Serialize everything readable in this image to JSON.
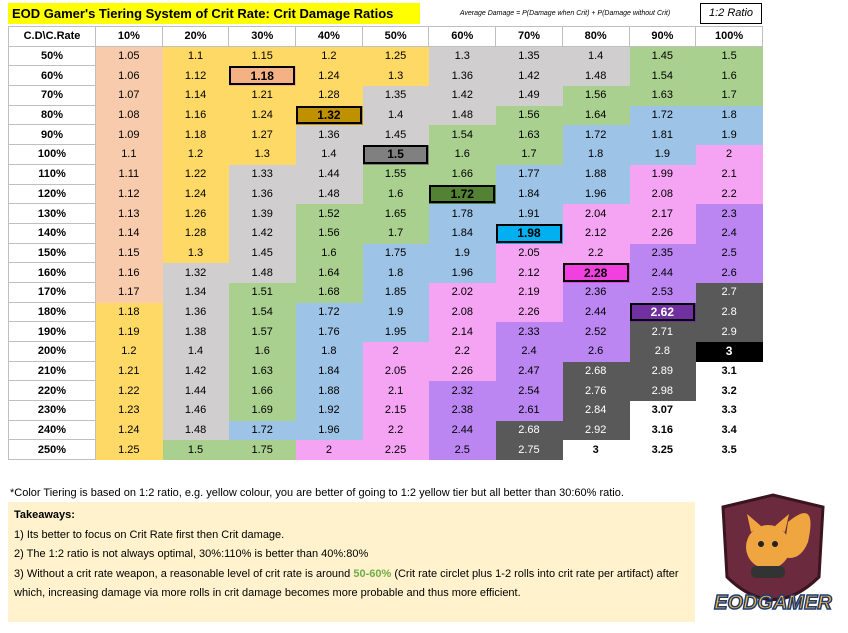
{
  "header": {
    "title": "EOD Gamer's Tiering System of Crit Rate: Crit Damage Ratios",
    "formula": "Average Damage = P(Damage when Crit) + P(Damage without Crit)",
    "ratio": "1:2 Ratio"
  },
  "tiers": [
    {
      "color": "#f8cbad",
      "text": "#000000",
      "bold": false,
      "border": false
    },
    {
      "color": "#ffd966",
      "text": "#000000",
      "bold": false,
      "border": false
    },
    {
      "color": "#d0cece",
      "text": "#000000",
      "bold": false,
      "border": false
    },
    {
      "color": "#a9d08e",
      "text": "#000000",
      "bold": false,
      "border": false
    },
    {
      "color": "#9dc3e6",
      "text": "#000000",
      "bold": false,
      "border": false
    },
    {
      "color": "#f5a3f3",
      "text": "#000000",
      "bold": false,
      "border": false
    },
    {
      "color": "#bb86f2",
      "text": "#000000",
      "bold": false,
      "border": false
    },
    {
      "color": "#595959",
      "text": "#ffffff",
      "bold": false,
      "border": false
    },
    {
      "color": "#ffffff",
      "text": "#000000",
      "bold": true,
      "border": false
    },
    {
      "color": "#f4b183",
      "text": "#000000",
      "bold": true,
      "border": true
    },
    {
      "color": "#bf9000",
      "text": "#000000",
      "bold": true,
      "border": true
    },
    {
      "color": "#808080",
      "text": "#000000",
      "bold": true,
      "border": true
    },
    {
      "color": "#548235",
      "text": "#000000",
      "bold": true,
      "border": true
    },
    {
      "color": "#00b0f0",
      "text": "#000000",
      "bold": true,
      "border": true
    },
    {
      "color": "#f23fe0",
      "text": "#000000",
      "bold": true,
      "border": true
    },
    {
      "color": "#7030a0",
      "text": "#ffffff",
      "bold": true,
      "border": true
    },
    {
      "color": "#000000",
      "text": "#ffffff",
      "bold": true,
      "border": true
    }
  ],
  "table": {
    "corner": "C.D\\C.Rate",
    "columns": [
      "10%",
      "20%",
      "30%",
      "40%",
      "50%",
      "60%",
      "70%",
      "80%",
      "90%",
      "100%"
    ],
    "rows": [
      {
        "label": "50%",
        "cells": [
          "1.05",
          "1.1",
          "1.15",
          "1.2",
          "1.25",
          "1.3",
          "1.35",
          "1.4",
          "1.45",
          "1.5"
        ],
        "tiers": [
          0,
          1,
          1,
          1,
          1,
          2,
          2,
          2,
          3,
          3
        ]
      },
      {
        "label": "60%",
        "cells": [
          "1.06",
          "1.12",
          "1.18",
          "1.24",
          "1.3",
          "1.36",
          "1.42",
          "1.48",
          "1.54",
          "1.6"
        ],
        "tiers": [
          0,
          1,
          9,
          1,
          1,
          2,
          2,
          2,
          3,
          3
        ]
      },
      {
        "label": "70%",
        "cells": [
          "1.07",
          "1.14",
          "1.21",
          "1.28",
          "1.35",
          "1.42",
          "1.49",
          "1.56",
          "1.63",
          "1.7"
        ],
        "tiers": [
          0,
          1,
          1,
          1,
          2,
          2,
          2,
          3,
          3,
          3
        ]
      },
      {
        "label": "80%",
        "cells": [
          "1.08",
          "1.16",
          "1.24",
          "1.32",
          "1.4",
          "1.48",
          "1.56",
          "1.64",
          "1.72",
          "1.8"
        ],
        "tiers": [
          0,
          1,
          1,
          10,
          2,
          2,
          3,
          3,
          4,
          4
        ]
      },
      {
        "label": "90%",
        "cells": [
          "1.09",
          "1.18",
          "1.27",
          "1.36",
          "1.45",
          "1.54",
          "1.63",
          "1.72",
          "1.81",
          "1.9"
        ],
        "tiers": [
          0,
          1,
          1,
          2,
          2,
          3,
          3,
          4,
          4,
          4
        ]
      },
      {
        "label": "100%",
        "cells": [
          "1.1",
          "1.2",
          "1.3",
          "1.4",
          "1.5",
          "1.6",
          "1.7",
          "1.8",
          "1.9",
          "2"
        ],
        "tiers": [
          0,
          1,
          1,
          2,
          11,
          3,
          3,
          4,
          4,
          5
        ]
      },
      {
        "label": "110%",
        "cells": [
          "1.11",
          "1.22",
          "1.33",
          "1.44",
          "1.55",
          "1.66",
          "1.77",
          "1.88",
          "1.99",
          "2.1"
        ],
        "tiers": [
          0,
          1,
          2,
          2,
          3,
          3,
          4,
          4,
          5,
          5
        ]
      },
      {
        "label": "120%",
        "cells": [
          "1.12",
          "1.24",
          "1.36",
          "1.48",
          "1.6",
          "1.72",
          "1.84",
          "1.96",
          "2.08",
          "2.2"
        ],
        "tiers": [
          0,
          1,
          2,
          2,
          3,
          12,
          4,
          4,
          5,
          5
        ]
      },
      {
        "label": "130%",
        "cells": [
          "1.13",
          "1.26",
          "1.39",
          "1.52",
          "1.65",
          "1.78",
          "1.91",
          "2.04",
          "2.17",
          "2.3"
        ],
        "tiers": [
          0,
          1,
          2,
          3,
          3,
          4,
          4,
          5,
          5,
          6
        ]
      },
      {
        "label": "140%",
        "cells": [
          "1.14",
          "1.28",
          "1.42",
          "1.56",
          "1.7",
          "1.84",
          "1.98",
          "2.12",
          "2.26",
          "2.4"
        ],
        "tiers": [
          0,
          1,
          2,
          3,
          3,
          4,
          13,
          5,
          5,
          6
        ]
      },
      {
        "label": "150%",
        "cells": [
          "1.15",
          "1.3",
          "1.45",
          "1.6",
          "1.75",
          "1.9",
          "2.05",
          "2.2",
          "2.35",
          "2.5"
        ],
        "tiers": [
          0,
          1,
          2,
          3,
          4,
          4,
          5,
          5,
          6,
          6
        ]
      },
      {
        "label": "160%",
        "cells": [
          "1.16",
          "1.32",
          "1.48",
          "1.64",
          "1.8",
          "1.96",
          "2.12",
          "2.28",
          "2.44",
          "2.6"
        ],
        "tiers": [
          0,
          2,
          2,
          3,
          4,
          4,
          5,
          14,
          6,
          6
        ]
      },
      {
        "label": "170%",
        "cells": [
          "1.17",
          "1.34",
          "1.51",
          "1.68",
          "1.85",
          "2.02",
          "2.19",
          "2.36",
          "2.53",
          "2.7"
        ],
        "tiers": [
          0,
          2,
          3,
          3,
          4,
          5,
          5,
          6,
          6,
          7
        ]
      },
      {
        "label": "180%",
        "cells": [
          "1.18",
          "1.36",
          "1.54",
          "1.72",
          "1.9",
          "2.08",
          "2.26",
          "2.44",
          "2.62",
          "2.8"
        ],
        "tiers": [
          1,
          2,
          3,
          4,
          4,
          5,
          5,
          6,
          15,
          7
        ]
      },
      {
        "label": "190%",
        "cells": [
          "1.19",
          "1.38",
          "1.57",
          "1.76",
          "1.95",
          "2.14",
          "2.33",
          "2.52",
          "2.71",
          "2.9"
        ],
        "tiers": [
          1,
          2,
          3,
          4,
          4,
          5,
          6,
          6,
          7,
          7
        ]
      },
      {
        "label": "200%",
        "cells": [
          "1.2",
          "1.4",
          "1.6",
          "1.8",
          "2",
          "2.2",
          "2.4",
          "2.6",
          "2.8",
          "3"
        ],
        "tiers": [
          1,
          2,
          3,
          4,
          5,
          5,
          6,
          6,
          7,
          16
        ]
      },
      {
        "label": "210%",
        "cells": [
          "1.21",
          "1.42",
          "1.63",
          "1.84",
          "2.05",
          "2.26",
          "2.47",
          "2.68",
          "2.89",
          "3.1"
        ],
        "tiers": [
          1,
          2,
          3,
          4,
          5,
          5,
          6,
          7,
          7,
          8
        ]
      },
      {
        "label": "220%",
        "cells": [
          "1.22",
          "1.44",
          "1.66",
          "1.88",
          "2.1",
          "2.32",
          "2.54",
          "2.76",
          "2.98",
          "3.2"
        ],
        "tiers": [
          1,
          2,
          3,
          4,
          5,
          6,
          6,
          7,
          7,
          8
        ]
      },
      {
        "label": "230%",
        "cells": [
          "1.23",
          "1.46",
          "1.69",
          "1.92",
          "2.15",
          "2.38",
          "2.61",
          "2.84",
          "3.07",
          "3.3"
        ],
        "tiers": [
          1,
          2,
          3,
          4,
          5,
          6,
          6,
          7,
          8,
          8
        ]
      },
      {
        "label": "240%",
        "cells": [
          "1.24",
          "1.48",
          "1.72",
          "1.96",
          "2.2",
          "2.44",
          "2.68",
          "2.92",
          "3.16",
          "3.4"
        ],
        "tiers": [
          1,
          2,
          4,
          4,
          5,
          6,
          7,
          7,
          8,
          8
        ]
      },
      {
        "label": "250%",
        "cells": [
          "1.25",
          "1.5",
          "1.75",
          "2",
          "2.25",
          "2.5",
          "2.75",
          "3",
          "3.25",
          "3.5"
        ],
        "tiers": [
          1,
          3,
          3,
          5,
          5,
          6,
          7,
          8,
          8,
          8
        ]
      }
    ]
  },
  "footnote": "*Color Tiering is based on 1:2 ratio, e.g. yellow colour, you are better of going to 1:2 yellow tier but all better than 30:60% ratio.",
  "takeaways": {
    "title": "Takeaways:",
    "items": [
      "1) Its better to focus on Crit Rate first then Crit damage.",
      "2) The 1:2 ratio is not always optimal, 30%:110% is better than 40%:80%"
    ],
    "last": {
      "before": "3) Without a crit rate weapon, a reasonable level of crit rate is around ",
      "highlight": "50-60%",
      "after": " (Crit rate circlet plus 1-2 rolls into crit rate per artifact) after which, increasing damage via more rolls in crit damage becomes more probable and thus more efficient."
    }
  },
  "logo": {
    "text": "EODGAMER"
  }
}
